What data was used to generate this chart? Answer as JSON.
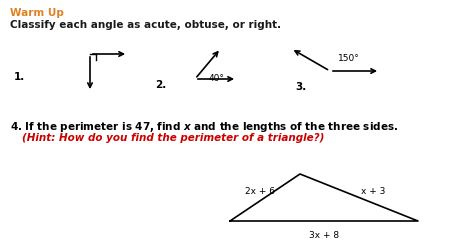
{
  "background_color": "#ffffff",
  "warm_up_text": "Warm Up",
  "warm_up_color": "#e08020",
  "classify_text": "Classify each angle as acute, obtuse, or right.",
  "classify_color": "#1a1a1a",
  "label1": "1.",
  "label2": "2.",
  "label3": "3.",
  "angle2_deg": "40°",
  "angle3_deg": "150°",
  "q4_hint": "(Hint: How do you find the perimeter of a triangle?)",
  "q4_hint_color": "#cc0000",
  "tri_label_left": "2x + 6",
  "tri_label_right": "x + 3",
  "tri_label_bottom": "3x + 8",
  "font_size_title": 7.5,
  "font_size_main": 7.5,
  "font_size_small": 6.5
}
